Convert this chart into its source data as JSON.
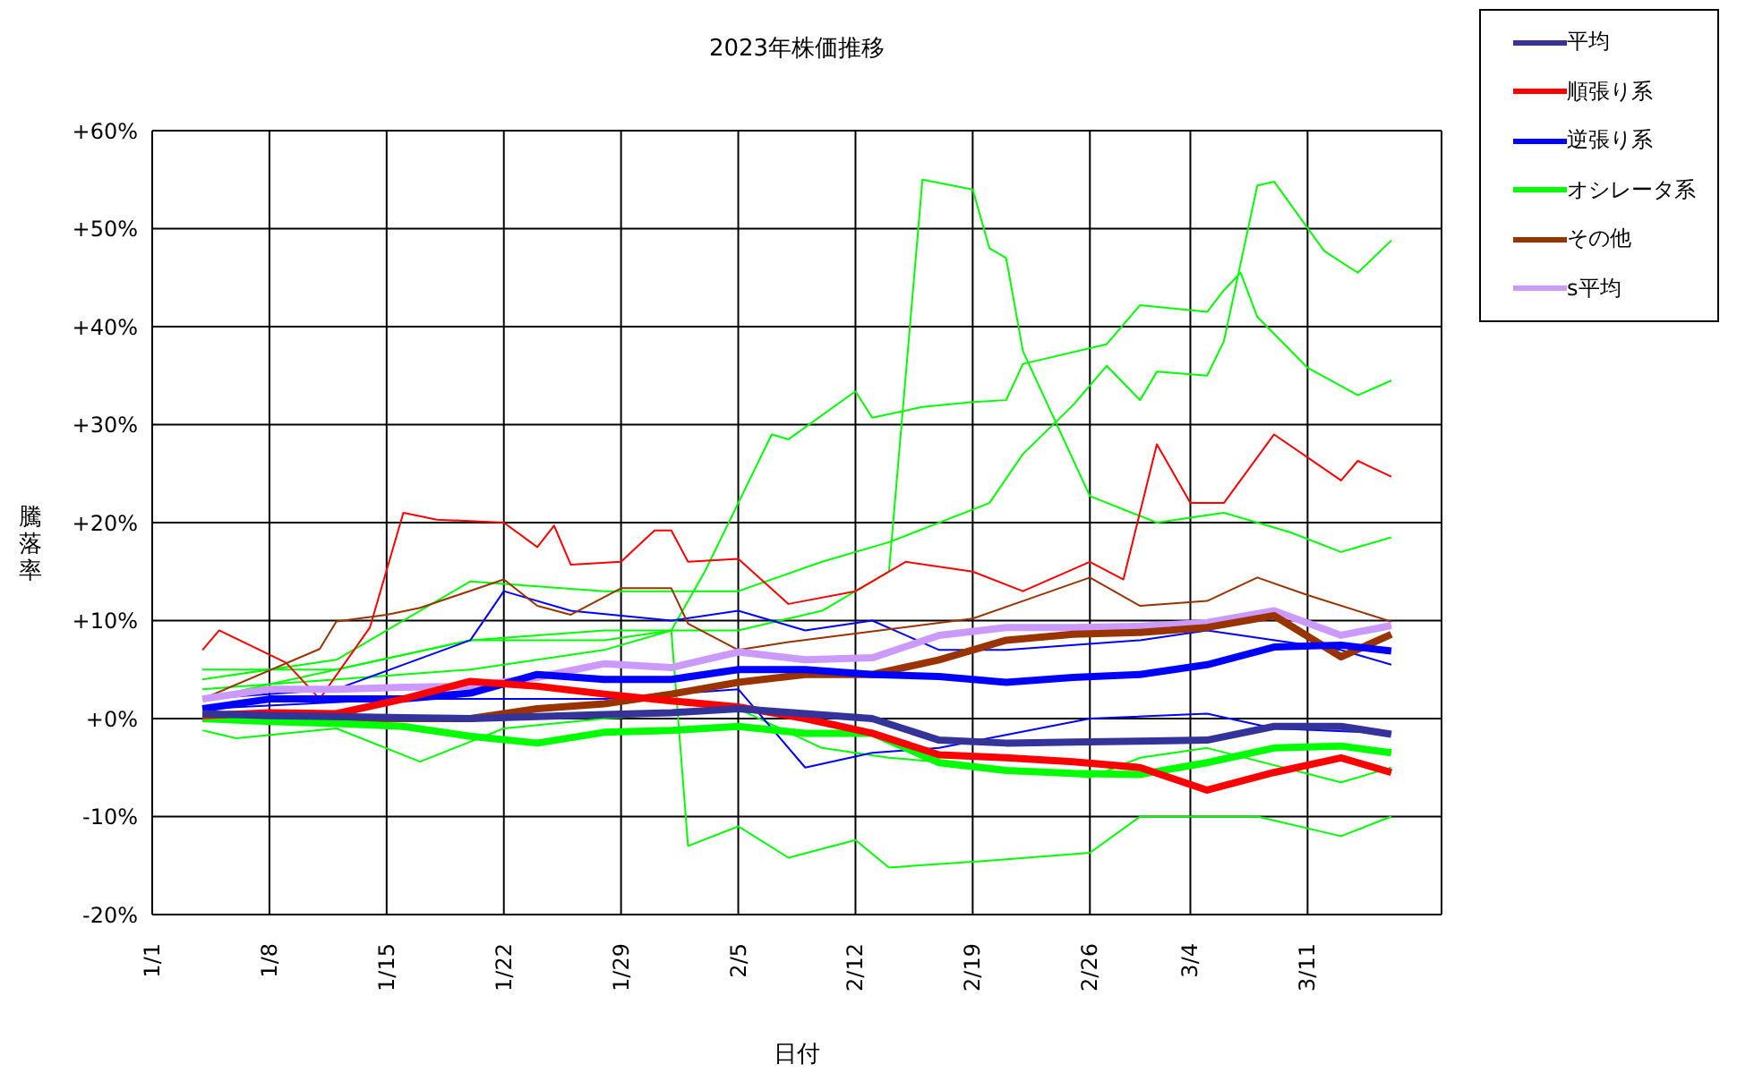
{
  "chart_data": {
    "type": "line",
    "title": "2023年株価推移",
    "xlabel": "日付",
    "ylabel": "騰落率",
    "xlim": [
      "2023-01-01",
      "2023-03-19"
    ],
    "xticks": [
      {
        "value": "2023-01-01",
        "label": "1/1"
      },
      {
        "value": "2023-01-08",
        "label": "1/8"
      },
      {
        "value": "2023-01-15",
        "label": "1/15"
      },
      {
        "value": "2023-01-22",
        "label": "1/22"
      },
      {
        "value": "2023-01-29",
        "label": "1/29"
      },
      {
        "value": "2023-02-05",
        "label": "2/5"
      },
      {
        "value": "2023-02-12",
        "label": "2/12"
      },
      {
        "value": "2023-02-19",
        "label": "2/19"
      },
      {
        "value": "2023-02-26",
        "label": "2/26"
      },
      {
        "value": "2023-03-04",
        "label": "3/4"
      },
      {
        "value": "2023-03-11",
        "label": "3/11"
      }
    ],
    "ylim": [
      -20,
      60
    ],
    "yticks": [
      {
        "value": -20,
        "label": "-20%"
      },
      {
        "value": -10,
        "label": "-10%"
      },
      {
        "value": 0,
        "label": "+0%"
      },
      {
        "value": 10,
        "label": "+10%"
      },
      {
        "value": 20,
        "label": "+20%"
      },
      {
        "value": 30,
        "label": "+30%"
      },
      {
        "value": 40,
        "label": "+40%"
      },
      {
        "value": 50,
        "label": "+50%"
      },
      {
        "value": 60,
        "label": "+60%"
      }
    ],
    "grid": true,
    "legend": "top right",
    "marker": "none",
    "line_style": "solid",
    "x": [
      "2023-01-04",
      "2023-01-08",
      "2023-01-12",
      "2023-01-16",
      "2023-01-20",
      "2023-01-24",
      "2023-01-28",
      "2023-02-01",
      "2023-02-05",
      "2023-02-09",
      "2023-02-13",
      "2023-02-17",
      "2023-02-21",
      "2023-02-25",
      "2023-03-01",
      "2023-03-05",
      "2023-03-09",
      "2023-03-13",
      "2023-03-16"
    ],
    "series": [
      {
        "color": "#00ff00",
        "x": [
          "2023-01-04",
          "2023-01-12",
          "2023-01-20",
          "2023-01-28",
          "2023-02-05",
          "2023-02-10",
          "2023-02-14",
          "2023-02-16",
          "2023-02-19",
          "2023-02-20",
          "2023-02-21",
          "2023-02-22",
          "2023-02-26",
          "2023-03-02",
          "2023-03-06",
          "2023-03-10",
          "2023-03-13",
          "2023-03-16"
        ],
        "values": [
          5,
          5,
          8,
          9,
          9,
          11,
          15,
          55,
          54,
          48,
          47,
          37.5,
          22.7,
          20,
          21,
          19,
          17,
          18.5
        ]
      },
      {
        "color": "#00ff00",
        "x": [
          "2023-01-04",
          "2023-01-12",
          "2023-01-20",
          "2023-01-28",
          "2023-02-05",
          "2023-02-10",
          "2023-02-14",
          "2023-02-20",
          "2023-02-22",
          "2023-02-25",
          "2023-02-27",
          "2023-03-01",
          "2023-03-02",
          "2023-03-05",
          "2023-03-06",
          "2023-03-08",
          "2023-03-09",
          "2023-03-12",
          "2023-03-14",
          "2023-03-16"
        ],
        "values": [
          4,
          6,
          14,
          13,
          13,
          16,
          18,
          22,
          27,
          32,
          36,
          32.5,
          35.4,
          35,
          38.5,
          54.4,
          54.8,
          47.7,
          45.5,
          48.8
        ]
      },
      {
        "color": "#00ff00",
        "x": [
          "2023-01-04",
          "2023-01-12",
          "2023-01-20",
          "2023-01-28",
          "2023-02-01",
          "2023-02-03",
          "2023-02-05",
          "2023-02-07",
          "2023-02-08",
          "2023-02-12",
          "2023-02-13",
          "2023-02-16",
          "2023-02-19",
          "2023-02-21",
          "2023-02-22",
          "2023-02-27",
          "2023-03-01",
          "2023-03-05",
          "2023-03-06",
          "2023-03-07",
          "2023-03-08",
          "2023-03-11",
          "2023-03-14",
          "2023-03-16"
        ],
        "values": [
          3,
          4,
          5,
          7,
          9,
          15,
          22,
          29,
          28.5,
          33.4,
          30.7,
          31.8,
          32.3,
          32.5,
          36.2,
          38.2,
          42.2,
          41.5,
          43.7,
          45.5,
          41,
          35.8,
          33,
          34.5
        ]
      },
      {
        "color": "#00ff00",
        "x": [
          "2023-01-04",
          "2023-01-12",
          "2023-01-20",
          "2023-01-28",
          "2023-02-01",
          "2023-02-02",
          "2023-02-05",
          "2023-02-08",
          "2023-02-12",
          "2023-02-14",
          "2023-02-20",
          "2023-02-26",
          "2023-03-01",
          "2023-03-08",
          "2023-03-13",
          "2023-03-16"
        ],
        "values": [
          2,
          5,
          8,
          8,
          9,
          -13,
          -11,
          -14.2,
          -12.4,
          -15.2,
          -14.5,
          -13.7,
          -10,
          -10,
          -12,
          -10
        ]
      },
      {
        "color": "#00ff00",
        "x": [
          "2023-01-04",
          "2023-01-06",
          "2023-01-12",
          "2023-01-17",
          "2023-01-22",
          "2023-01-28",
          "2023-02-05",
          "2023-02-10",
          "2023-02-14",
          "2023-02-19",
          "2023-02-26",
          "2023-03-01",
          "2023-03-05",
          "2023-03-13",
          "2023-03-16"
        ],
        "values": [
          -1.2,
          -2,
          -1,
          -4.4,
          -1,
          0,
          1,
          -3,
          -4,
          -4.7,
          -6,
          -4,
          -3,
          -6.5,
          -5
        ]
      },
      {
        "color": "#ff0000",
        "x": [
          "2023-01-04",
          "2023-01-05",
          "2023-01-09",
          "2023-01-11",
          "2023-01-14",
          "2023-01-16",
          "2023-01-18",
          "2023-01-22",
          "2023-01-24",
          "2023-01-25",
          "2023-01-26",
          "2023-01-29",
          "2023-01-31",
          "2023-02-01",
          "2023-02-02",
          "2023-02-05",
          "2023-02-08",
          "2023-02-12",
          "2023-02-15",
          "2023-02-19",
          "2023-02-22",
          "2023-02-26",
          "2023-02-28",
          "2023-03-02",
          "2023-03-04",
          "2023-03-06",
          "2023-03-09",
          "2023-03-13",
          "2023-03-14",
          "2023-03-16"
        ],
        "values": [
          7,
          9,
          5.7,
          2,
          9.3,
          21,
          20.3,
          20,
          17.5,
          19.7,
          15.7,
          16,
          19.2,
          19.2,
          16,
          16.3,
          11.7,
          13,
          16,
          15,
          13,
          16,
          14.2,
          28,
          22,
          22,
          29,
          24.3,
          26.3,
          24.7
        ]
      },
      {
        "color": "#0000ff",
        "x": [
          "2023-01-04",
          "2023-01-12",
          "2023-01-20",
          "2023-01-22",
          "2023-01-26",
          "2023-02-01",
          "2023-02-05",
          "2023-02-09",
          "2023-02-13",
          "2023-02-17",
          "2023-02-21",
          "2023-03-01",
          "2023-03-05",
          "2023-03-13",
          "2023-03-16"
        ],
        "values": [
          2,
          3,
          8,
          13,
          11,
          10,
          11,
          9,
          10,
          7,
          7,
          8,
          9,
          7,
          5.5
        ]
      },
      {
        "color": "#0000ff",
        "x": [
          "2023-01-04",
          "2023-01-16",
          "2023-01-28",
          "2023-02-05",
          "2023-02-09",
          "2023-02-13",
          "2023-02-17",
          "2023-02-26",
          "2023-03-05",
          "2023-03-09",
          "2023-03-16"
        ],
        "values": [
          1,
          2,
          2,
          3,
          -5,
          -3.5,
          -3,
          0,
          0.5,
          -1,
          -1.5
        ]
      },
      {
        "color": "#993300",
        "x": [
          "2023-01-04",
          "2023-01-11",
          "2023-01-12",
          "2023-01-15",
          "2023-01-17",
          "2023-01-22",
          "2023-01-24",
          "2023-01-26",
          "2023-01-29",
          "2023-02-01",
          "2023-02-02",
          "2023-02-05",
          "2023-02-08",
          "2023-02-19",
          "2023-02-22",
          "2023-02-26",
          "2023-03-01",
          "2023-03-05",
          "2023-03-08",
          "2023-03-11",
          "2023-03-16"
        ],
        "values": [
          2,
          7.1,
          9.9,
          10.6,
          11.3,
          14.2,
          11.5,
          10.6,
          13.3,
          13.3,
          9.7,
          7,
          7.8,
          10.2,
          12,
          14.4,
          11.5,
          12,
          14.4,
          12.6,
          9.9
        ]
      },
      {
        "name": "平均",
        "color": "#333399",
        "values": [
          0.5,
          0.3,
          0.2,
          0.1,
          0,
          0.2,
          0.4,
          0.6,
          1,
          0.5,
          0,
          -2.2,
          -2.5,
          -2.4,
          -2.3,
          -2.2,
          -0.8,
          -0.8,
          -1.6
        ]
      },
      {
        "name": "順張り系",
        "color": "#ff0000",
        "values": [
          0.3,
          0.6,
          0.5,
          2,
          3.8,
          3.3,
          2.5,
          1.8,
          1.2,
          0,
          -1.5,
          -3.7,
          -4,
          -4.4,
          -5,
          -7.3,
          -5.5,
          -4,
          -5.5
        ]
      },
      {
        "name": "逆張り系",
        "color": "#0000ff",
        "values": [
          1,
          2,
          2,
          2,
          2.6,
          4.5,
          4,
          4,
          5,
          5,
          4.5,
          4.3,
          3.7,
          4.2,
          4.5,
          5.5,
          7.3,
          7.5,
          6.9
        ]
      },
      {
        "name": "オシレータ系",
        "color": "#00ff00",
        "values": [
          0,
          -0.3,
          -0.5,
          -0.8,
          -1.8,
          -2.5,
          -1.4,
          -1.2,
          -0.8,
          -1.5,
          -1.5,
          -4.5,
          -5.3,
          -5.6,
          -5.7,
          -4.5,
          -3,
          -2.8,
          -3.5
        ]
      },
      {
        "name": "その他",
        "color": "#993300",
        "values": [
          0,
          0,
          0,
          0,
          0,
          1,
          1.5,
          2.5,
          3.7,
          4.5,
          4.5,
          6,
          8,
          8.6,
          8.8,
          9.3,
          10.5,
          6.3,
          8.6
        ]
      },
      {
        "name": "s平均",
        "color": "#cc99ff",
        "values": [
          2,
          3,
          3,
          3.2,
          3.3,
          4.2,
          5.6,
          5.2,
          6.8,
          6,
          6.2,
          8.5,
          9.3,
          9.3,
          9.4,
          9.8,
          11,
          8.5,
          9.5
        ]
      }
    ]
  }
}
